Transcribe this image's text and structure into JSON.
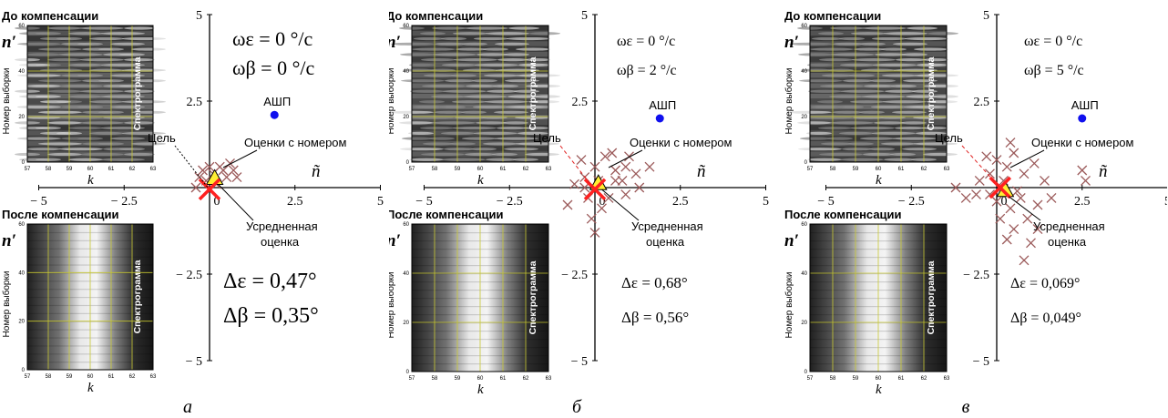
{
  "panels": [
    {
      "letter": "а",
      "before_title": "До компенсации",
      "after_title": "После компенсации",
      "ylabel": "Номер выборки",
      "ylabel_prime": "n′",
      "xlabel": "k",
      "spectro_label": "Спектрограмма",
      "x_ticks": [
        "57",
        "58",
        "59",
        "60",
        "61",
        "62",
        "63"
      ],
      "y_ticks": [
        "0",
        "20",
        "40",
        "60"
      ],
      "omega_eps": "ωε = 0 °/c",
      "omega_beta": "ωβ = 0 °/c",
      "omega_eps_parts": [
        "ω",
        "ε",
        " = 0 ",
        "°",
        "c"
      ],
      "omega_beta_parts": [
        "ω",
        "β",
        " = 0 ",
        "°",
        "c"
      ],
      "ashp": "АШП",
      "target": "Цель",
      "estimates": "Оценки с номером",
      "n_tilde": "ñ",
      "averaged_1": "Усредненная",
      "averaged_2": "оценка",
      "delta_eps": "Δε = 0,47°",
      "delta_beta": "Δβ = 0,35°",
      "axis_ticks_x": [
        "− 5",
        "− 2.5",
        "0",
        "2.5",
        "5"
      ],
      "axis_ticks_y": [
        "5",
        "2.5",
        "− 2.5",
        "− 5"
      ]
    },
    {
      "letter": "б",
      "before_title": "До компенсации",
      "after_title": "После компенсации",
      "ylabel": "Номер выборки",
      "ylabel_prime": "n′",
      "xlabel": "k",
      "spectro_label": "Спектрограмма",
      "x_ticks": [
        "57",
        "58",
        "59",
        "60",
        "61",
        "62",
        "63"
      ],
      "y_ticks": [
        "0",
        "20",
        "40",
        "60"
      ],
      "omega_eps": "ωε = 0 °/c",
      "omega_beta": "ωβ = 2 °/c",
      "ashp": "АШП",
      "target": "Цель",
      "estimates": "Оценки с номером",
      "n_tilde": "ñ",
      "averaged_1": "Усредненная",
      "averaged_2": "оценка",
      "delta_eps": "Δε = 0,68°",
      "delta_beta": "Δβ = 0,56°",
      "axis_ticks_x": [
        "− 5",
        "− 2.5",
        "0",
        "2.5",
        "5"
      ],
      "axis_ticks_y": [
        "5",
        "2.5",
        "− 2.5",
        "− 5"
      ]
    },
    {
      "letter": "в",
      "before_title": "До компенсации",
      "after_title": "После компенсации",
      "ylabel": "Номер выборки",
      "ylabel_prime": "n′",
      "xlabel": "k",
      "spectro_label": "Спектрограмма",
      "x_ticks": [
        "57",
        "58",
        "59",
        "60",
        "61",
        "62",
        "63"
      ],
      "y_ticks": [
        "0",
        "20",
        "40",
        "60"
      ],
      "omega_eps": "ωε = 0 °/c",
      "omega_beta": "ωβ = 5 °/c",
      "ashp": "АШП",
      "target": "Цель",
      "estimates": "Оценки с номером",
      "n_tilde": "ñ",
      "averaged_1": "Усредненная",
      "averaged_2": "оценка",
      "delta_eps": "Δε = 0,069°",
      "delta_beta": "Δβ = 0,049°",
      "axis_ticks_x": [
        "− 5",
        "− 2.5",
        "0",
        "2.5",
        "5"
      ],
      "axis_ticks_y": [
        "5",
        "2.5",
        "− 2.5",
        "− 5"
      ]
    }
  ],
  "colors": {
    "cross": "#9b5a5a",
    "big_cross": "#ff2020",
    "ashp_dot": "#1010ee",
    "avg_fill": "#ffee33",
    "grid": "#c8c832"
  }
}
